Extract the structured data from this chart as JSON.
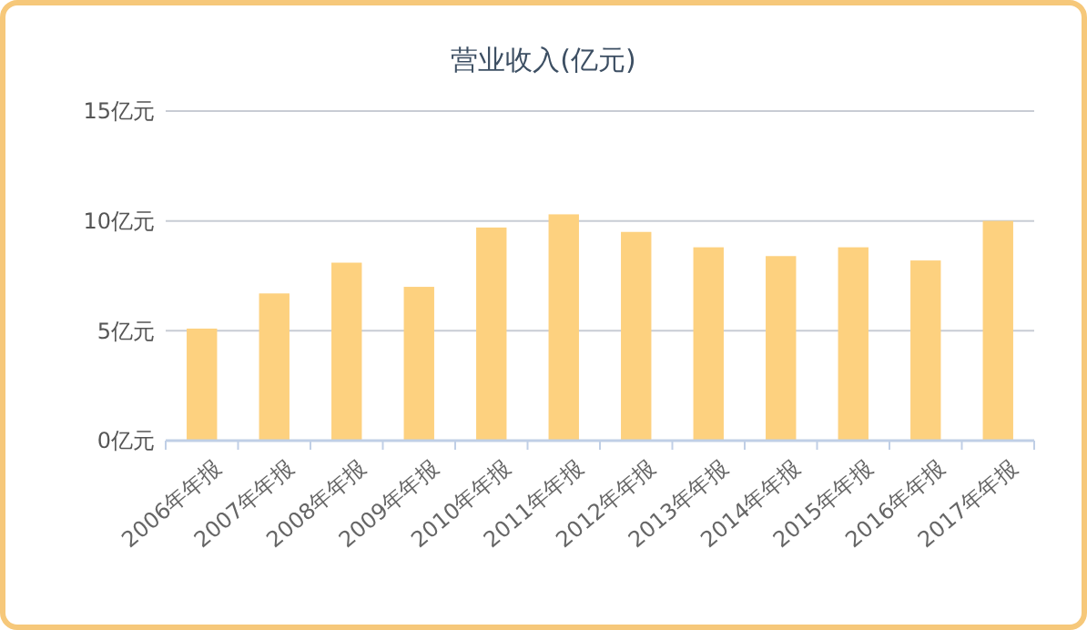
{
  "chart_data": {
    "type": "bar",
    "title": "营业收入(亿元)",
    "categories": [
      "2006年年报",
      "2007年年报",
      "2008年年报",
      "2009年年报",
      "2010年年报",
      "2011年年报",
      "2012年年报",
      "2013年年报",
      "2014年年报",
      "2015年年报",
      "2016年年报",
      "2017年年报"
    ],
    "values": [
      5.1,
      6.7,
      8.1,
      7.0,
      9.7,
      10.3,
      9.5,
      8.8,
      8.4,
      8.8,
      8.2,
      10.0
    ],
    "color": "#fdd17f",
    "ylim": [
      0,
      15
    ],
    "yticks": [
      {
        "value": 0,
        "label": "0亿元"
      },
      {
        "value": 5,
        "label": "5亿元"
      },
      {
        "value": 10,
        "label": "10亿元"
      },
      {
        "value": 15,
        "label": "15亿元"
      }
    ],
    "grid": "y"
  }
}
